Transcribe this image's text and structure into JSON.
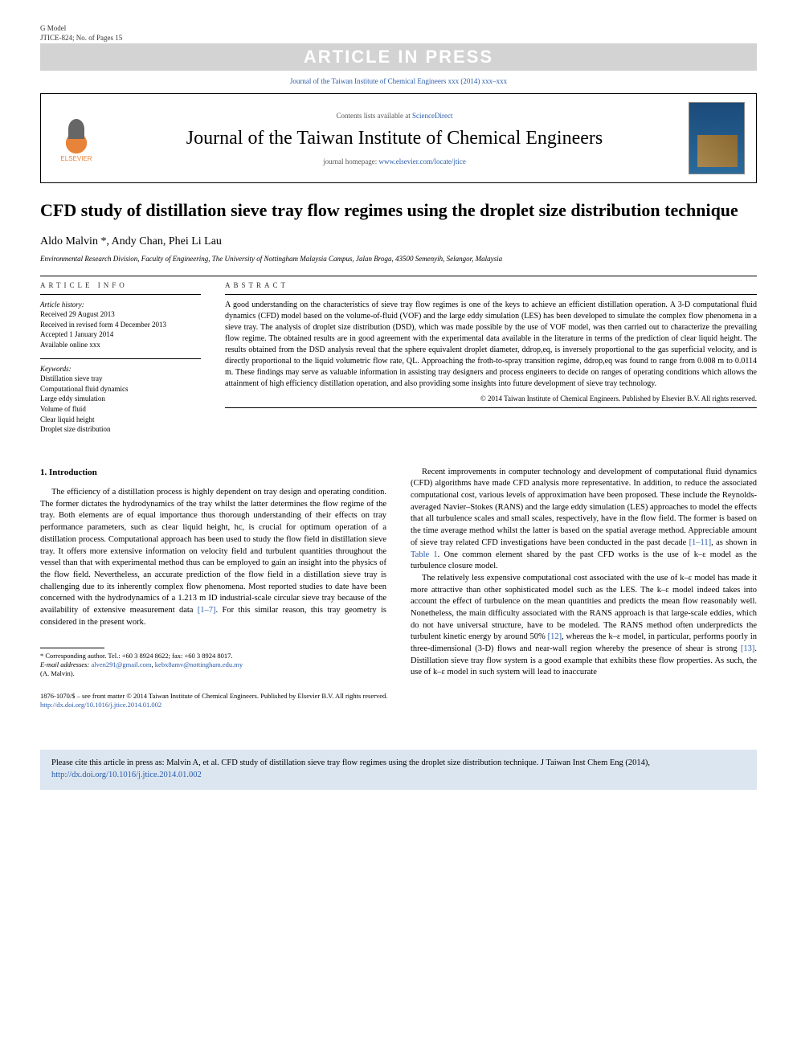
{
  "gmodel": {
    "line1": "G Model",
    "line2": "JTICE-824; No. of Pages 15"
  },
  "press_banner": "ARTICLE IN PRESS",
  "citation_top": "Journal of the Taiwan Institute of Chemical Engineers xxx (2014) xxx–xxx",
  "header": {
    "contents_prefix": "Contents lists available at ",
    "contents_link": "ScienceDirect",
    "journal_name": "Journal of the Taiwan Institute of Chemical Engineers",
    "homepage_prefix": "journal homepage: ",
    "homepage_url": "www.elsevier.com/locate/jtice",
    "elsevier_label": "ELSEVIER"
  },
  "title": "CFD study of distillation sieve tray flow regimes using the droplet size distribution technique",
  "authors": "Aldo Malvin *, Andy Chan, Phei Li Lau",
  "affiliation": "Environmental Research Division, Faculty of Engineering, The University of Nottingham Malaysia Campus, Jalan Broga, 43500 Semenyih, Selangor, Malaysia",
  "info": {
    "header": "ARTICLE INFO",
    "history_label": "Article history:",
    "history": [
      "Received 29 August 2013",
      "Received in revised form 4 December 2013",
      "Accepted 1 January 2014",
      "Available online xxx"
    ],
    "keywords_label": "Keywords:",
    "keywords": [
      "Distillation sieve tray",
      "Computational fluid dynamics",
      "Large eddy simulation",
      "Volume of fluid",
      "Clear liquid height",
      "Droplet size distribution"
    ]
  },
  "abstract": {
    "header": "ABSTRACT",
    "text": "A good understanding on the characteristics of sieve tray flow regimes is one of the keys to achieve an efficient distillation operation. A 3-D computational fluid dynamics (CFD) model based on the volume-of-fluid (VOF) and the large eddy simulation (LES) has been developed to simulate the complex flow phenomena in a sieve tray. The analysis of droplet size distribution (DSD), which was made possible by the use of VOF model, was then carried out to characterize the prevailing flow regime. The obtained results are in good agreement with the experimental data available in the literature in terms of the prediction of clear liquid height. The results obtained from the DSD analysis reveal that the sphere equivalent droplet diameter, ddrop,eq, is inversely proportional to the gas superficial velocity, and is directly proportional to the liquid volumetric flow rate, QL. Approaching the froth-to-spray transition regime, ddrop,eq was found to range from 0.008 m to 0.0114 m. These findings may serve as valuable information in assisting tray designers and process engineers to decide on ranges of operating conditions which allows the attainment of high efficiency distillation operation, and also providing some insights into future development of sieve tray technology.",
    "copyright": "© 2014 Taiwan Institute of Chemical Engineers. Published by Elsevier B.V. All rights reserved."
  },
  "section1": {
    "heading": "1. Introduction"
  },
  "col_left": {
    "p1": "The efficiency of a distillation process is highly dependent on tray design and operating condition. The former dictates the hydrodynamics of the tray whilst the latter determines the flow regime of the tray. Both elements are of equal importance thus thorough understanding of their effects on tray performance parameters, such as clear liquid height, hc, is crucial for optimum operation of a distillation process. Computational approach has been used to study the flow field in distillation sieve tray. It offers more extensive information on velocity field and turbulent quantities throughout the vessel than that with experimental method thus can be employed to gain an insight into the physics of the flow field. Nevertheless, an accurate prediction of the flow field in a distillation sieve tray is challenging due to its inherently complex flow phenomena. Most reported studies to date have been concerned with the hydrodynamics of a 1.213 m ID industrial-scale circular sieve tray because of the availability of extensive measurement data ",
    "ref1": "[1–7]",
    "p1b": ". For this similar reason, this tray geometry is considered in the present work."
  },
  "col_right": {
    "p1": "Recent improvements in computer technology and development of computational fluid dynamics (CFD) algorithms have made CFD analysis more representative. In addition, to reduce the associated computational cost, various levels of approximation have been proposed. These include the Reynolds-averaged Navier–Stokes (RANS) and the large eddy simulation (LES) approaches to model the effects that all turbulence scales and small scales, respectively, have in the flow field. The former is based on the time average method whilst the latter is based on the spatial average method. Appreciable amount of sieve tray related CFD investigations have been conducted in the past decade ",
    "ref1": "[1–11]",
    "p1b": ", as shown in ",
    "ref2": "Table 1",
    "p1c": ". One common element shared by the past CFD works is the use of k–ε model as the turbulence closure model.",
    "p2": "The relatively less expensive computational cost associated with the use of k–ε model has made it more attractive than other sophisticated model such as the LES. The k–ε model indeed takes into account the effect of turbulence on the mean quantities and predicts the mean flow reasonably well. Nonetheless, the main difficulty associated with the RANS approach is that large-scale eddies, which do not have universal structure, have to be modeled. The RANS method often underpredicts the turbulent kinetic energy by around 50% ",
    "ref3": "[12]",
    "p2b": ", whereas the k–ε model, in particular, performs poorly in three-dimensional (3-D) flows and near-wall region whereby the presence of shear is strong ",
    "ref4": "[13]",
    "p2c": ". Distillation sieve tray flow system is a good example that exhibits these flow properties. As such, the use of k–ε model in such system will lead to inaccurate"
  },
  "footnote": {
    "corr": "* Corresponding author. Tel.: +60 3 8924 8622; fax: +60 3 8924 8017.",
    "email_label": "E-mail addresses: ",
    "email1": "alven291@gmail.com",
    "email2": "kebx8amv@nottingham.edu.my",
    "author": "(A. Malvin)."
  },
  "bottom": {
    "issn": "1876-1070/$ – see front matter © 2014 Taiwan Institute of Chemical Engineers. Published by Elsevier B.V. All rights reserved.",
    "doi": "http://dx.doi.org/10.1016/j.jtice.2014.01.002"
  },
  "citebox": {
    "text": "Please cite this article in press as: Malvin A, et al. CFD study of distillation sieve tray flow regimes using the droplet size distribution technique. J Taiwan Inst Chem Eng (2014), ",
    "doi": "http://dx.doi.org/10.1016/j.jtice.2014.01.002"
  }
}
